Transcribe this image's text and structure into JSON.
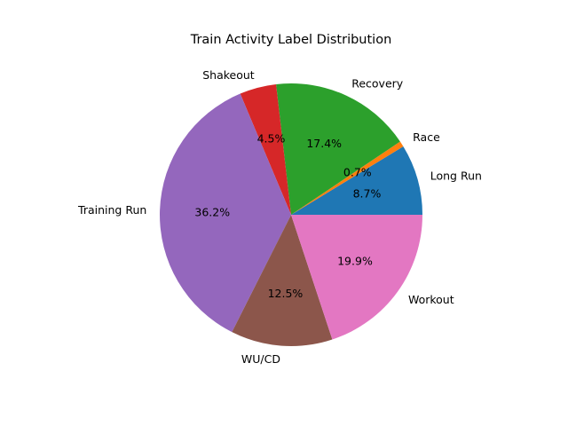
{
  "chart_data": {
    "type": "pie",
    "title": "Train Activity Label Distribution",
    "categories": [
      "Long Run",
      "Race",
      "Recovery",
      "Shakeout",
      "Training Run",
      "WU/CD",
      "Workout"
    ],
    "values": [
      8.7,
      0.7,
      17.4,
      4.5,
      36.2,
      12.5,
      19.9
    ],
    "percent_labels": [
      "8.7%",
      "0.7%",
      "17.4%",
      "4.5%",
      "36.2%",
      "12.5%",
      "19.9%"
    ],
    "colors": [
      "#1f77b4",
      "#ff7f0e",
      "#2ca02c",
      "#d62728",
      "#9467bd",
      "#8c564b",
      "#e377c2"
    ],
    "start_angle_deg": 0,
    "direction": "counterclockwise",
    "legend": "none"
  }
}
